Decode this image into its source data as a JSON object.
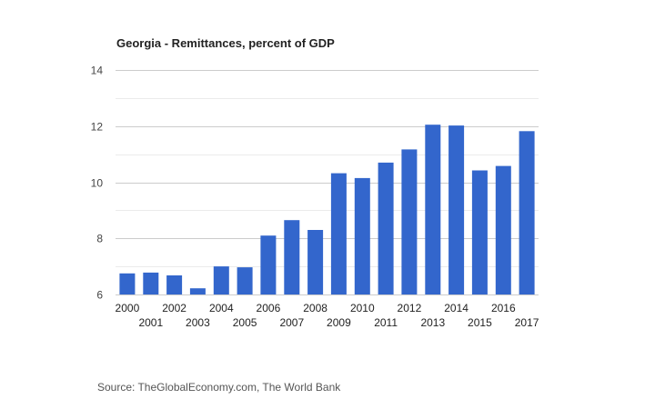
{
  "chart_data": {
    "type": "bar",
    "title": "Georgia - Remittances, percent of GDP",
    "xlabel": "",
    "ylabel": "",
    "categories": [
      "2000",
      "2001",
      "2002",
      "2003",
      "2004",
      "2005",
      "2006",
      "2007",
      "2008",
      "2009",
      "2010",
      "2011",
      "2012",
      "2013",
      "2014",
      "2015",
      "2016",
      "2017"
    ],
    "values": [
      6.75,
      6.78,
      6.68,
      6.22,
      7.0,
      6.97,
      8.1,
      8.65,
      8.3,
      10.32,
      10.15,
      10.7,
      11.17,
      12.05,
      12.02,
      10.42,
      10.58,
      11.82
    ],
    "ylim": [
      6,
      14
    ],
    "yticks": [
      6,
      8,
      10,
      12,
      14
    ],
    "grid": true,
    "legend": "none",
    "bar_color": "#3366cc",
    "grid_color": "#cccccc",
    "minor_grid_color": "#ebebeb"
  },
  "footer": {
    "source": "Source: TheGlobalEconomy.com, The World Bank"
  }
}
